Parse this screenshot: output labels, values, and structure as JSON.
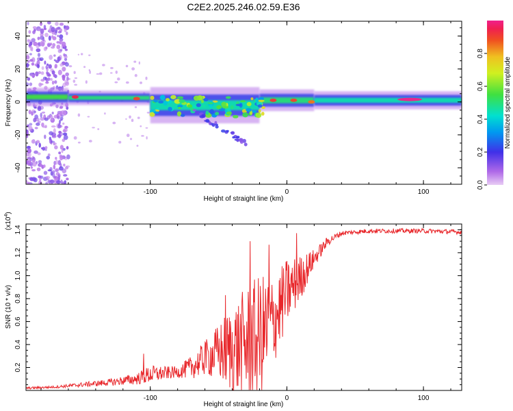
{
  "figure": {
    "title": "C2E2.2025.246.02.59.E36"
  },
  "chart_data": [
    {
      "type": "heatmap",
      "name": "spectrogram",
      "xlabel": "Height of straight line (km)",
      "ylabel": "Frequency (Hz)",
      "xlim": [
        -191,
        128
      ],
      "ylim": [
        -50,
        49
      ],
      "xticks": [
        -100,
        0,
        100
      ],
      "yticks": [
        -40,
        -20,
        0,
        20,
        40
      ],
      "colorbar": {
        "label": "Normalized spectral amplitude",
        "range": [
          0,
          1
        ],
        "ticks": [
          "0.0",
          "0.2",
          "0.4",
          "0.6",
          "0.8"
        ],
        "tick_values": [
          0,
          0.2,
          0.4,
          0.6,
          0.8
        ],
        "colormap": "rainbow"
      },
      "bands": [
        {
          "x_start": -191,
          "x_end": -160,
          "freq_center": 3,
          "freq_halfwidth": 2.5,
          "amplitude": 0.55
        },
        {
          "x_start": -160,
          "x_end": -100,
          "freq_center": 2.5,
          "freq_halfwidth": 2.0,
          "amplitude": 0.5
        },
        {
          "x_start": -100,
          "x_end": -20,
          "freq_center": -2,
          "freq_halfwidth": 5,
          "amplitude": 0.45
        },
        {
          "x_start": -20,
          "x_end": 20,
          "freq_center": 1,
          "freq_halfwidth": 3,
          "amplitude": 0.5
        },
        {
          "x_start": 20,
          "x_end": 128,
          "freq_center": 1,
          "freq_halfwidth": 2.5,
          "amplitude": 0.45
        }
      ],
      "hotspots": [
        {
          "x": -155,
          "freq": 3,
          "amplitude": 0.95
        },
        {
          "x": -110,
          "freq": 2,
          "amplitude": 0.9
        },
        {
          "x": -10,
          "freq": 1,
          "amplitude": 0.92
        },
        {
          "x": 5,
          "freq": 1,
          "amplitude": 0.9
        },
        {
          "x": 18,
          "freq": 0,
          "amplitude": 0.85
        },
        {
          "x": 90,
          "freq": 1.5,
          "amplitude": 1.0
        }
      ],
      "noise_region": {
        "x_start": -191,
        "x_end": -160,
        "freq_range": [
          -50,
          49
        ],
        "amplitude": 0.12
      }
    },
    {
      "type": "line",
      "name": "snr",
      "xlabel": "Height of straight line (km)",
      "ylabel": "SNR (10 * v/v)",
      "y_exponent_label": "(x10",
      "y_exponent_power": "4",
      "y_exponent_close": ")",
      "xlim": [
        -191,
        128
      ],
      "ylim": [
        0,
        1.45
      ],
      "xticks": [
        -100,
        0,
        100
      ],
      "yticks": [
        0.2,
        0.4,
        0.6,
        0.8,
        1.0,
        1.2,
        1.4
      ],
      "ytick_labels": [
        "0.2",
        "0.4",
        "0.6",
        "0.8",
        "1.0",
        "1.2",
        "1.4"
      ],
      "color": "#e8262a",
      "envelope": {
        "x": [
          -191,
          -170,
          -150,
          -130,
          -110,
          -100,
          -90,
          -80,
          -70,
          -60,
          -50,
          -40,
          -30,
          -20,
          -15,
          -10,
          -5,
          0,
          10,
          20,
          30,
          40,
          60,
          80,
          100,
          128
        ],
        "mean": [
          0.02,
          0.03,
          0.05,
          0.07,
          0.1,
          0.14,
          0.15,
          0.16,
          0.2,
          0.28,
          0.33,
          0.36,
          0.4,
          0.46,
          0.52,
          0.6,
          0.72,
          0.85,
          0.98,
          1.15,
          1.3,
          1.37,
          1.39,
          1.39,
          1.39,
          1.38
        ],
        "spread": [
          0.01,
          0.01,
          0.02,
          0.03,
          0.05,
          0.08,
          0.06,
          0.05,
          0.1,
          0.15,
          0.25,
          0.4,
          0.5,
          0.55,
          0.5,
          0.4,
          0.35,
          0.3,
          0.2,
          0.08,
          0.04,
          0.02,
          0.02,
          0.02,
          0.02,
          0.02
        ]
      },
      "peaks": [
        {
          "x": -105,
          "y": 0.32
        },
        {
          "x": -60,
          "y": 0.42
        },
        {
          "x": -45,
          "y": 0.83
        },
        {
          "x": -27,
          "y": 1.3
        },
        {
          "x": -13,
          "y": 1.27
        },
        {
          "x": 7,
          "y": 1.37
        }
      ]
    }
  ]
}
